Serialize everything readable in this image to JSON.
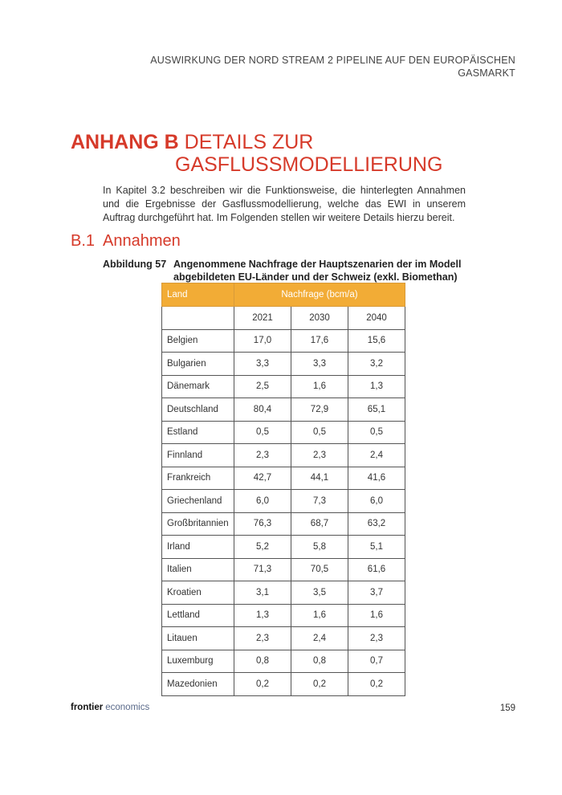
{
  "header": {
    "lines": [
      "AUSWIRKUNG DER NORD STREAM 2 PIPELINE AUF DEN EUROPÄISCHEN",
      "GASMARKT"
    ]
  },
  "heading": {
    "label": "ANHANG B",
    "lines": [
      "DETAILS ZUR",
      "GASFLUSSMODELLIERUNG"
    ]
  },
  "paragraph": "In Kapitel 3.2 beschreiben wir die Funktionsweise, die hinterlegten Annahmen und die Ergebnisse der Gasflussmodellierung, welche das EWI in unserem Auftrag durchgeführt hat. Im Folgenden stellen wir weitere Details hierzu bereit.",
  "section": {
    "number": "B.1",
    "title": "Annahmen"
  },
  "figure": {
    "label": "Abbildung 57",
    "title": "Angenommene Nachfrage der Hauptszenarien der im Modell abgebildeten EU-Länder und der Schweiz (exkl. Biomethan)"
  },
  "table": {
    "header": [
      "Land",
      "Nachfrage (bcm/a)"
    ],
    "years": [
      "2021",
      "2030",
      "2040"
    ],
    "rows": [
      [
        "Belgien",
        "17,0",
        "17,6",
        "15,6"
      ],
      [
        "Bulgarien",
        "3,3",
        "3,3",
        "3,2"
      ],
      [
        "Dänemark",
        "2,5",
        "1,6",
        "1,3"
      ],
      [
        "Deutschland",
        "80,4",
        "72,9",
        "65,1"
      ],
      [
        "Estland",
        "0,5",
        "0,5",
        "0,5"
      ],
      [
        "Finnland",
        "2,3",
        "2,3",
        "2,4"
      ],
      [
        "Frankreich",
        "42,7",
        "44,1",
        "41,6"
      ],
      [
        "Griechenland",
        "6,0",
        "7,3",
        "6,0"
      ],
      [
        "Großbritannien",
        "76,3",
        "68,7",
        "63,2"
      ],
      [
        "Irland",
        "5,2",
        "5,8",
        "5,1"
      ],
      [
        "Italien",
        "71,3",
        "70,5",
        "61,6"
      ],
      [
        "Kroatien",
        "3,1",
        "3,5",
        "3,7"
      ],
      [
        "Lettland",
        "1,3",
        "1,6",
        "1,6"
      ],
      [
        "Litauen",
        "2,3",
        "2,4",
        "2,3"
      ],
      [
        "Luxemburg",
        "0,8",
        "0,8",
        "0,7"
      ],
      [
        "Mazedonien",
        "0,2",
        "0,2",
        "0,2"
      ]
    ]
  },
  "footer": {
    "brand": [
      "frontier",
      "economics"
    ],
    "page": "159"
  }
}
